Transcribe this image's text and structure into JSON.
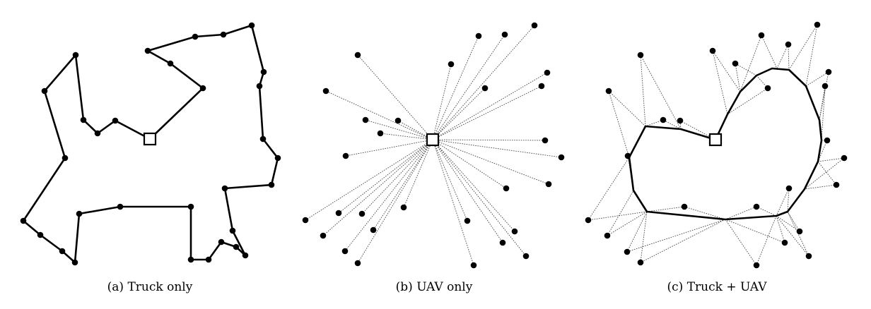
{
  "panels": [
    {
      "id": "a",
      "caption": "(a) Truck only"
    },
    {
      "id": "b",
      "caption": "(b) UAV only"
    },
    {
      "id": "c",
      "caption": "(c) Truck + UAV"
    }
  ],
  "colors": {
    "ink": "#000000",
    "background": "#ffffff"
  }
}
